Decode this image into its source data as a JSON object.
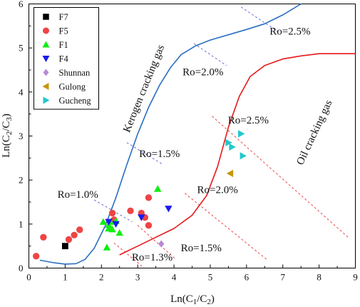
{
  "chart_data": {
    "type": "scatter",
    "xlabel_base": "Ln(C",
    "xlabel_sub1": "1",
    "xlabel_mid": "/C",
    "xlabel_sub2": "2",
    "xlabel_end": ")",
    "ylabel_base": "Ln(C",
    "ylabel_sub1": "2",
    "ylabel_mid": "/C",
    "ylabel_sub2": "3",
    "ylabel_end": ")",
    "xlim": [
      0,
      9
    ],
    "ylim": [
      0,
      6
    ],
    "xticks": [
      0,
      1,
      2,
      3,
      4,
      5,
      6,
      7,
      8,
      9
    ],
    "yticks": [
      0,
      1,
      2,
      3,
      4,
      5,
      6
    ],
    "grid": false,
    "legend_position": "top-left",
    "series": [
      {
        "name": "F7",
        "marker": "square",
        "color": "#000000",
        "points": [
          [
            1.0,
            0.5
          ]
        ]
      },
      {
        "name": "F5",
        "marker": "circle",
        "color": "#ee4444",
        "points": [
          [
            0.2,
            0.27
          ],
          [
            0.4,
            0.7
          ],
          [
            1.1,
            0.65
          ],
          [
            1.25,
            0.75
          ],
          [
            1.4,
            0.87
          ],
          [
            2.3,
            1.25
          ],
          [
            2.35,
            1.1
          ],
          [
            2.8,
            1.3
          ],
          [
            3.1,
            1.25
          ],
          [
            3.2,
            1.15
          ],
          [
            3.3,
            1.6
          ],
          [
            3.3,
            0.97
          ]
        ]
      },
      {
        "name": "F1",
        "marker": "triangle-up",
        "color": "#11ee11",
        "points": [
          [
            2.05,
            1.05
          ],
          [
            2.15,
            0.47
          ],
          [
            2.2,
            0.9
          ],
          [
            2.2,
            0.98
          ],
          [
            2.25,
            1.05
          ],
          [
            2.3,
            0.88
          ],
          [
            2.4,
            1.07
          ],
          [
            2.5,
            0.8
          ],
          [
            3.55,
            1.8
          ]
        ]
      },
      {
        "name": "F4",
        "marker": "triangle-down",
        "color": "#1a1aee",
        "points": [
          [
            2.2,
            1.05
          ],
          [
            2.4,
            1.0
          ],
          [
            3.1,
            1.15
          ],
          [
            3.85,
            1.35
          ]
        ]
      },
      {
        "name": "Shunnan",
        "marker": "diamond",
        "color": "#b98ad6",
        "points": [
          [
            3.65,
            0.55
          ]
        ]
      },
      {
        "name": "Gulong",
        "marker": "triangle-left",
        "color": "#c8960a",
        "points": [
          [
            5.55,
            2.15
          ]
        ]
      },
      {
        "name": "Gucheng",
        "marker": "triangle-right",
        "color": "#22c8cc",
        "points": [
          [
            5.5,
            2.85
          ],
          [
            5.6,
            2.75
          ],
          [
            5.85,
            3.05
          ],
          [
            5.9,
            2.55
          ]
        ]
      }
    ],
    "curves": [
      {
        "label": "Kerogen cracking gas",
        "color": "#2a6fc0",
        "points": [
          [
            0.3,
            0.18
          ],
          [
            0.7,
            0.12
          ],
          [
            1.0,
            0.09
          ],
          [
            1.3,
            0.1
          ],
          [
            1.55,
            0.2
          ],
          [
            1.8,
            0.45
          ],
          [
            2.1,
            0.95
          ],
          [
            2.4,
            1.6
          ],
          [
            2.7,
            2.35
          ],
          [
            3.0,
            3.05
          ],
          [
            3.3,
            3.65
          ],
          [
            3.6,
            4.15
          ],
          [
            3.9,
            4.55
          ],
          [
            4.2,
            4.85
          ],
          [
            4.6,
            5.05
          ],
          [
            5.0,
            5.18
          ],
          [
            5.5,
            5.3
          ],
          [
            6.0,
            5.42
          ],
          [
            6.5,
            5.55
          ],
          [
            7.0,
            5.75
          ],
          [
            7.5,
            6.0
          ]
        ]
      },
      {
        "label": "Oil cracking gas",
        "color": "#e31a1a",
        "points": [
          [
            2.5,
            0.3
          ],
          [
            3.0,
            0.5
          ],
          [
            3.5,
            0.7
          ],
          [
            4.0,
            0.9
          ],
          [
            4.5,
            1.2
          ],
          [
            4.9,
            1.65
          ],
          [
            5.2,
            2.3
          ],
          [
            5.5,
            3.2
          ],
          [
            5.8,
            3.9
          ],
          [
            6.1,
            4.35
          ],
          [
            6.5,
            4.6
          ],
          [
            7.0,
            4.75
          ],
          [
            7.5,
            4.82
          ],
          [
            8.0,
            4.87
          ],
          [
            9.0,
            4.87
          ]
        ]
      }
    ],
    "ro_lines": [
      {
        "color": "#6a6ad8",
        "from": [
          5.85,
          5.93
        ],
        "to": [
          6.9,
          5.35
        ]
      },
      {
        "color": "#6a6ad8",
        "from": [
          4.55,
          5.1
        ],
        "to": [
          5.45,
          4.6
        ]
      },
      {
        "color": "#6a6ad8",
        "from": [
          2.7,
          2.85
        ],
        "to": [
          3.7,
          2.35
        ]
      },
      {
        "color": "#6a6ad8",
        "from": [
          1.8,
          1.55
        ],
        "to": [
          2.85,
          1.05
        ]
      },
      {
        "color": "#ee4444",
        "from": [
          5.05,
          3.45
        ],
        "to": [
          8.8,
          0.7
        ]
      },
      {
        "color": "#ee4444",
        "from": [
          4.3,
          1.7
        ],
        "to": [
          6.55,
          0.2
        ]
      },
      {
        "color": "#ee4444",
        "from": [
          3.0,
          0.97
        ],
        "to": [
          4.05,
          0.2
        ]
      },
      {
        "color": "#ee4444",
        "from": [
          2.35,
          0.57
        ],
        "to": [
          3.15,
          0.02
        ]
      }
    ],
    "annotations": [
      {
        "text": "Ro=2.5%",
        "x": 7.2,
        "y": 5.3,
        "rotate": 0
      },
      {
        "text": "Ro=2.0%",
        "x": 4.8,
        "y": 4.38,
        "rotate": 0
      },
      {
        "text": "Ro=1.5%",
        "x": 3.6,
        "y": 2.52,
        "rotate": 0
      },
      {
        "text": "Ro=1.0%",
        "x": 1.35,
        "y": 1.6,
        "rotate": 0
      },
      {
        "text": "Ro=2.5%",
        "x": 6.05,
        "y": 3.28,
        "rotate": 0
      },
      {
        "text": "Ro=2.0%",
        "x": 5.2,
        "y": 1.7,
        "rotate": 0
      },
      {
        "text": "Ro=1.5%",
        "x": 4.75,
        "y": 0.38,
        "rotate": 0
      },
      {
        "text": "Ro=1.3%",
        "x": 3.4,
        "y": 0.17,
        "rotate": 0
      },
      {
        "text": "Kerogen cracking gas",
        "x": 3.25,
        "y": 4.05,
        "rotate": -68
      },
      {
        "text": "Oil cracking gas",
        "x": 7.95,
        "y": 3.05,
        "rotate": -65
      }
    ]
  }
}
